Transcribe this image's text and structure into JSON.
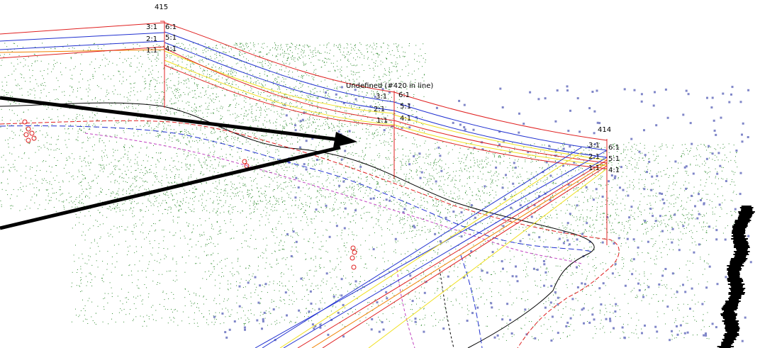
{
  "structures": {
    "left": {
      "label": "415",
      "ratios_left": [
        "3:1",
        "2:1",
        "1:1"
      ],
      "ratios_right": [
        "6:1",
        "5:1",
        "4:1"
      ]
    },
    "middle": {
      "label": "Undefined (#420 in line)",
      "ratios_left": [
        "3:1",
        "2:1",
        "1:1"
      ],
      "ratios_right": [
        "6:1",
        "5:1",
        "4:1"
      ]
    },
    "right": {
      "label": "414",
      "ratios_left": [
        "3:1",
        "2:1",
        "1:1"
      ],
      "ratios_right": [
        "6:1",
        "5:1",
        "4:1"
      ]
    }
  },
  "colors": {
    "background": "#ffffff",
    "vegetation_points": "#2e8b2e",
    "ground_points": "#7f86c8",
    "conductor_top": "#e02020",
    "conductor_mid": "#2030d0",
    "conductor_low": "#f0e020",
    "conductor_orange": "#f08000",
    "terrain": "#000000",
    "arrow": "#000000",
    "marker": "#e02020",
    "magenta_dash": "#c040c0"
  }
}
